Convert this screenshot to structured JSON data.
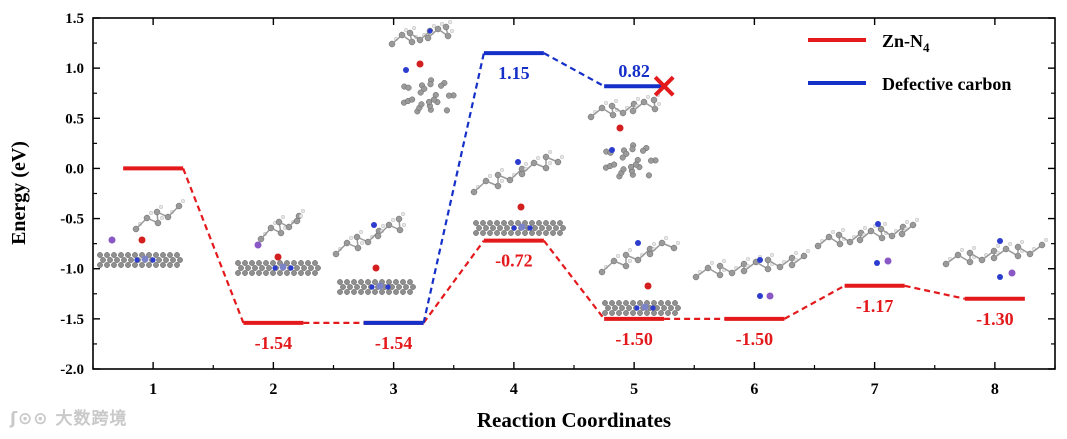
{
  "chart_data": {
    "type": "energy-profile",
    "xlabel": "Reaction Coordinates",
    "ylabel": "Energy (eV)",
    "ylim": [
      -2.0,
      1.5
    ],
    "yticks": [
      "1.5",
      "1.0",
      "0.5",
      "0.0",
      "-0.5",
      "-1.0",
      "-1.5",
      "-2.0"
    ],
    "ytick_values": [
      1.5,
      1.0,
      0.5,
      0.0,
      -0.5,
      -1.0,
      -1.5,
      -2.0
    ],
    "categories": [
      "1",
      "2",
      "3",
      "4",
      "5",
      "6",
      "7",
      "8"
    ],
    "x": [
      1,
      2,
      3,
      4,
      5,
      6,
      7,
      8
    ],
    "series": [
      {
        "name": "Zn-N4",
        "legend_main": "Zn-N",
        "legend_sub": "4",
        "color": "#e3191c",
        "x": [
          1,
          2,
          3,
          4,
          5,
          6,
          7,
          8
        ],
        "values": [
          0.0,
          -1.54,
          -1.54,
          -0.72,
          -1.5,
          -1.5,
          -1.17,
          -1.3
        ],
        "labels": [
          "",
          "-1.54",
          "-1.54",
          "-0.72",
          "-1.50",
          "-1.50",
          "-1.17",
          "-1.30"
        ]
      },
      {
        "name": "Defective carbon",
        "legend_main": "Defective carbon",
        "legend_sub": "",
        "color": "#1530c9",
        "x": [
          3,
          4,
          5
        ],
        "values": [
          -1.54,
          1.15,
          0.82
        ],
        "labels": [
          "",
          "1.15",
          "0.82"
        ]
      }
    ],
    "annotations": [
      {
        "type": "cross",
        "color": "#e3191c",
        "at": [
          5.25,
          0.82
        ]
      }
    ],
    "legend_position": "top-right"
  },
  "watermark": "大数跨境"
}
